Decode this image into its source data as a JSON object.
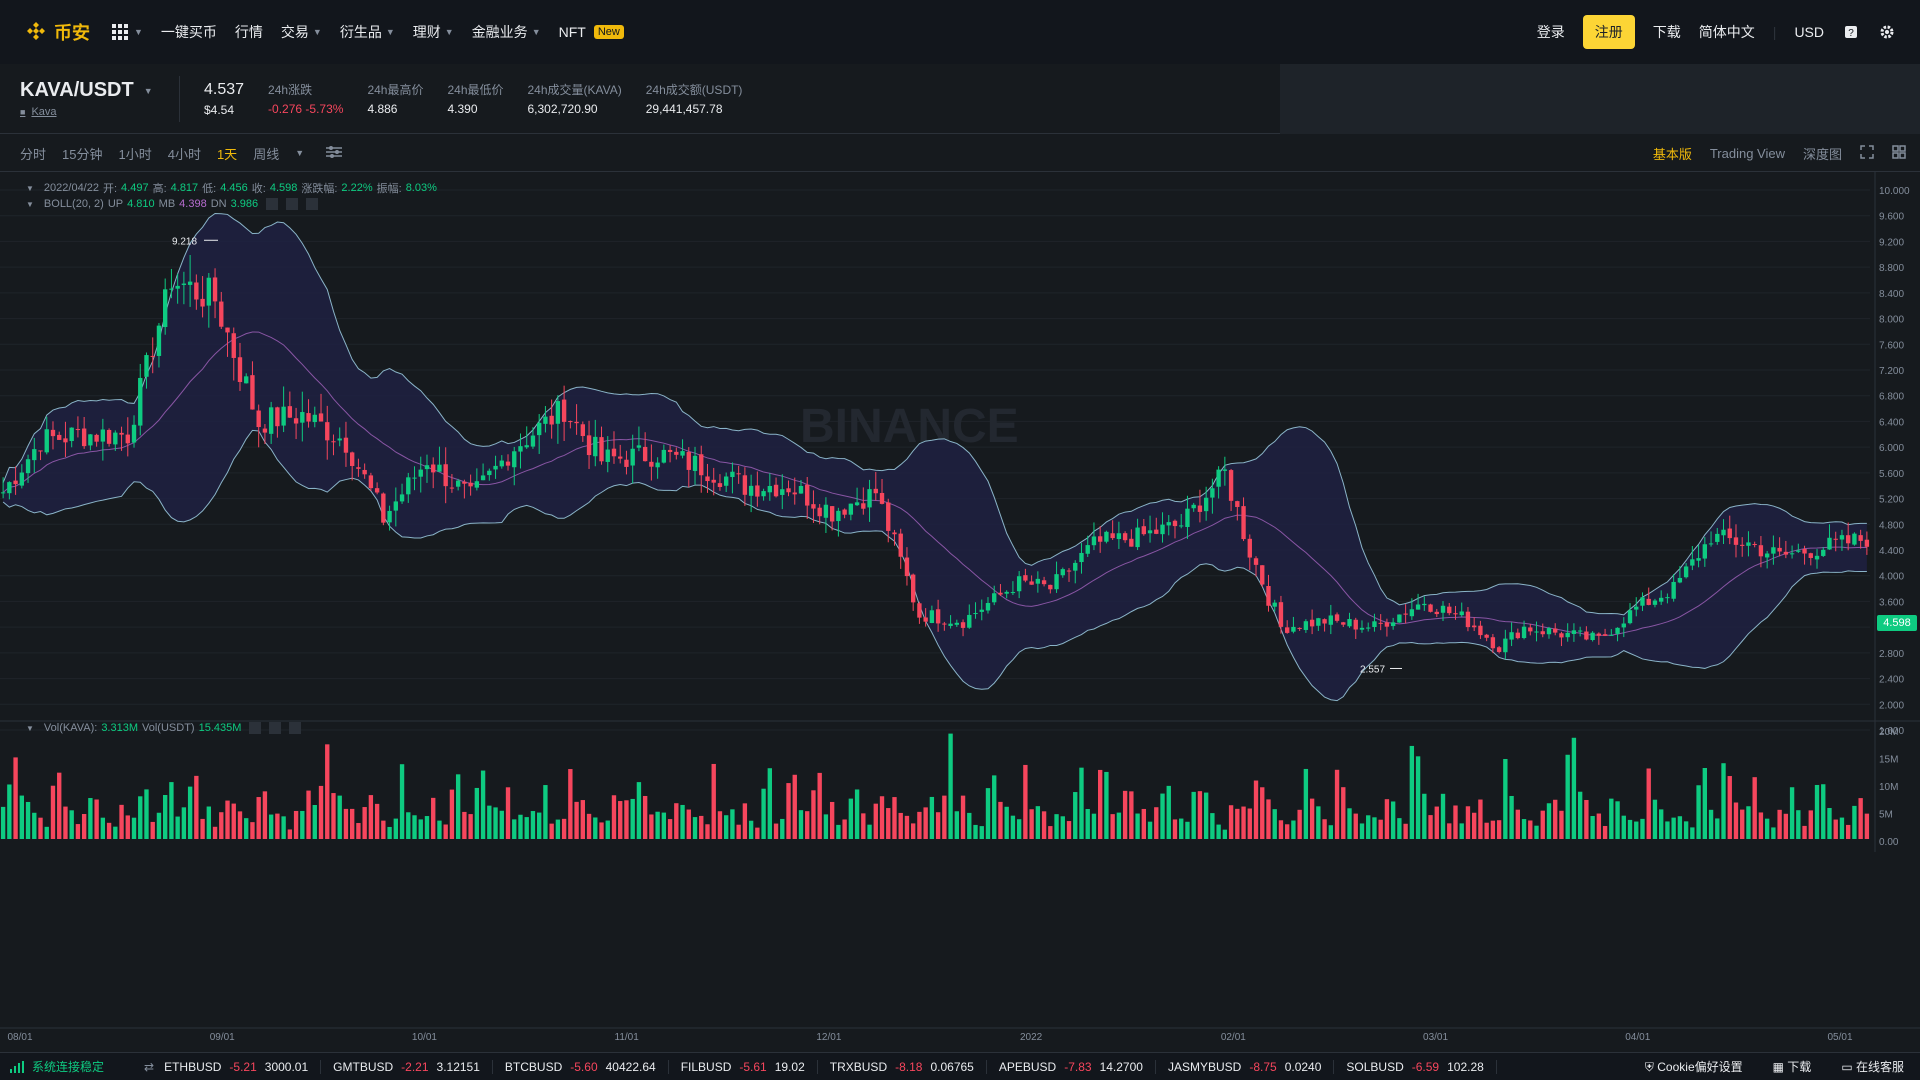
{
  "nav": {
    "logo_text": "币安",
    "items": [
      {
        "label": "一键买币",
        "caret": false
      },
      {
        "label": "行情",
        "caret": false
      },
      {
        "label": "交易",
        "caret": true
      },
      {
        "label": "衍生品",
        "caret": true
      },
      {
        "label": "理财",
        "caret": true
      },
      {
        "label": "金融业务",
        "caret": true
      },
      {
        "label": "NFT",
        "caret": false,
        "badge": "New"
      }
    ],
    "login": "登录",
    "register": "注册",
    "download": "下载",
    "language": "简体中文",
    "currency": "USD"
  },
  "ticker": {
    "pair": "KAVA/USDT",
    "token_link": "Kava",
    "last_price": "4.537",
    "last_usd": "$4.54",
    "stats": [
      {
        "label": "24h涨跌",
        "value": "-0.276 -5.73%",
        "color": "red"
      },
      {
        "label": "24h最高价",
        "value": "4.886",
        "color": ""
      },
      {
        "label": "24h最低价",
        "value": "4.390",
        "color": ""
      },
      {
        "label": "24h成交量(KAVA)",
        "value": "6,302,720.90",
        "color": ""
      },
      {
        "label": "24h成交额(USDT)",
        "value": "29,441,457.78",
        "color": ""
      }
    ]
  },
  "toolbar": {
    "timeframes": [
      "分时",
      "15分钟",
      "1小时",
      "4小时",
      "1天",
      "周线"
    ],
    "active_timeframe": "1天",
    "views": [
      "基本版",
      "Trading View",
      "深度图"
    ],
    "active_view": "基本版"
  },
  "legend": {
    "ohlc": {
      "date": "2022/04/22",
      "open_label": "开:",
      "open": "4.497",
      "high_label": "高:",
      "high": "4.817",
      "low_label": "低:",
      "low": "4.456",
      "close_label": "收:",
      "close": "4.598",
      "change_label": "涨跌幅:",
      "change": "2.22%",
      "amp_label": "振幅:",
      "amp": "8.03%"
    },
    "boll": {
      "name": "BOLL(20, 2)",
      "up_label": "UP",
      "up": "4.810",
      "mb_label": "MB",
      "mb": "4.398",
      "dn_label": "DN",
      "dn": "3.986"
    },
    "vol": {
      "kava_label": "Vol(KAVA):",
      "kava": "3.313M",
      "usdt_label": "Vol(USDT)",
      "usdt": "15.435M"
    }
  },
  "chart_data": {
    "type": "candlestick",
    "watermark": "BINANCE",
    "last_price_tag": "4.598",
    "high_marker": "9.218",
    "low_marker": "2.557",
    "y_ticks": [
      "10.000",
      "9.600",
      "9.200",
      "8.800",
      "8.400",
      "8.000",
      "7.600",
      "7.200",
      "6.800",
      "6.400",
      "6.000",
      "5.600",
      "5.200",
      "4.800",
      "4.400",
      "4.000",
      "3.600",
      "3.200",
      "2.800",
      "2.400",
      "2.000",
      "1.600"
    ],
    "vol_ticks": [
      "20M",
      "15M",
      "10M",
      "5M",
      "0.00"
    ],
    "x_ticks": [
      "08/01",
      "09/01",
      "10/01",
      "11/01",
      "12/01",
      "2022",
      "02/01",
      "03/01",
      "04/01",
      "05/01"
    ],
    "ylim": [
      1.6,
      10.0
    ],
    "close_anchors": [
      [
        0,
        5.3
      ],
      [
        6,
        6.1
      ],
      [
        12,
        6.2
      ],
      [
        20,
        6.2
      ],
      [
        27,
        8.6
      ],
      [
        34,
        8.3
      ],
      [
        41,
        6.4
      ],
      [
        48,
        6.5
      ],
      [
        55,
        6.1
      ],
      [
        61,
        4.9
      ],
      [
        68,
        5.8
      ],
      [
        75,
        5.2
      ],
      [
        82,
        6.0
      ],
      [
        90,
        6.6
      ],
      [
        96,
        5.8
      ],
      [
        105,
        5.9
      ],
      [
        112,
        5.7
      ],
      [
        119,
        5.4
      ],
      [
        126,
        5.4
      ],
      [
        133,
        5.0
      ],
      [
        140,
        5.3
      ],
      [
        147,
        3.4
      ],
      [
        154,
        3.3
      ],
      [
        163,
        3.9
      ],
      [
        168,
        3.8
      ],
      [
        175,
        4.5
      ],
      [
        182,
        4.6
      ],
      [
        189,
        4.8
      ],
      [
        196,
        5.6
      ],
      [
        200,
        4.4
      ],
      [
        205,
        3.2
      ],
      [
        212,
        3.3
      ],
      [
        220,
        3.2
      ],
      [
        228,
        3.6
      ],
      [
        235,
        3.3
      ],
      [
        240,
        2.9
      ],
      [
        244,
        3.2
      ],
      [
        250,
        3.1
      ],
      [
        256,
        3.0
      ],
      [
        262,
        3.5
      ],
      [
        268,
        3.8
      ],
      [
        274,
        4.6
      ],
      [
        280,
        4.5
      ],
      [
        285,
        4.3
      ],
      [
        290,
        4.4
      ],
      [
        295,
        4.5
      ],
      [
        300,
        4.6
      ]
    ],
    "volume_pattern_m": [
      9,
      14,
      18,
      10,
      8,
      6,
      5,
      4,
      9,
      12,
      7,
      6,
      4,
      5,
      13,
      9,
      7,
      5,
      4,
      8,
      6,
      4,
      10,
      12,
      5,
      5,
      16,
      20,
      8,
      6,
      9,
      11,
      5,
      7,
      4,
      6,
      8,
      10,
      5,
      4,
      6,
      15,
      10,
      8,
      5,
      4,
      3,
      6,
      8,
      9
    ]
  },
  "status": {
    "connection": "系统连接稳定",
    "tickers": [
      {
        "sym": "ETHBUSD",
        "chg": "-5.21",
        "price": "3000.01"
      },
      {
        "sym": "GMTBUSD",
        "chg": "-2.21",
        "price": "3.12151"
      },
      {
        "sym": "BTCBUSD",
        "chg": "-5.60",
        "price": "40422.64"
      },
      {
        "sym": "FILBUSD",
        "chg": "-5.61",
        "price": "19.02"
      },
      {
        "sym": "TRXBUSD",
        "chg": "-8.18",
        "price": "0.06765"
      },
      {
        "sym": "APEBUSD",
        "chg": "-7.83",
        "price": "14.2700"
      },
      {
        "sym": "JASMYBUSD",
        "chg": "-8.75",
        "price": "0.0240"
      },
      {
        "sym": "SOLBUSD",
        "chg": "-6.59",
        "price": "102.28"
      }
    ],
    "cookie": "Cookie偏好设置",
    "download": "下载",
    "support": "在线客服"
  },
  "colors": {
    "up": "#0ecb81",
    "down": "#f6465d",
    "accent": "#f0b90b",
    "boll_fill": "#1e2142",
    "boll_line": "#8ab4c8",
    "mb_line": "#b66cd0"
  }
}
